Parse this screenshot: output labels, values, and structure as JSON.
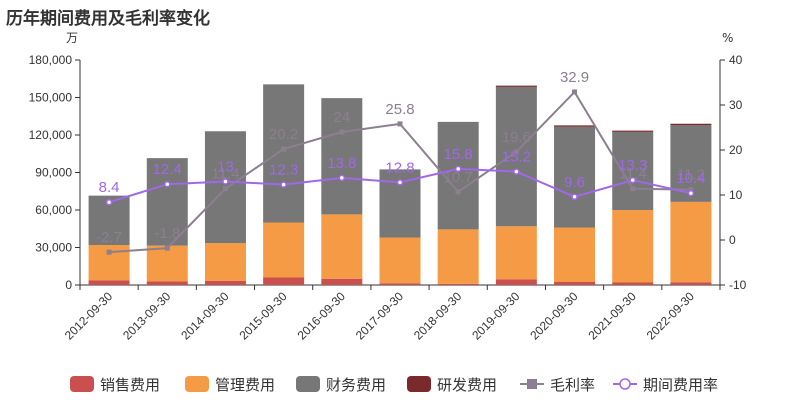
{
  "chart_data": {
    "type": "bar",
    "title": "历年期间费用及毛利率变化",
    "left_unit": "万",
    "right_unit": "%",
    "categories": [
      "2012-09-30",
      "2013-09-30",
      "2014-09-30",
      "2015-09-30",
      "2016-09-30",
      "2017-09-30",
      "2018-09-30",
      "2019-09-30",
      "2020-09-30",
      "2021-09-30",
      "2022-09-30"
    ],
    "left_axis": {
      "min": 0,
      "max": 180000,
      "ticks": [
        0,
        30000,
        60000,
        90000,
        120000,
        150000,
        180000
      ],
      "tick_labels": [
        "0",
        "30,000",
        "60,000",
        "90,000",
        "120,000",
        "150,000",
        "180,000"
      ]
    },
    "right_axis": {
      "min": -10,
      "max": 40,
      "ticks": [
        -10,
        0,
        10,
        20,
        30,
        40
      ],
      "tick_labels": [
        "-10",
        "0",
        "10",
        "20",
        "30",
        "40"
      ]
    },
    "stacked_series": [
      {
        "name": "销售费用",
        "color": "#c9504f",
        "values": [
          3800,
          3000,
          3400,
          6000,
          5000,
          1400,
          900,
          4600,
          2400,
          2000,
          2200
        ]
      },
      {
        "name": "管理费用",
        "color": "#f59a45",
        "values": [
          28200,
          28500,
          30100,
          44000,
          51500,
          36600,
          43600,
          42400,
          43600,
          58000,
          64300
        ]
      },
      {
        "name": "财务费用",
        "color": "#777777",
        "values": [
          39500,
          70000,
          89500,
          110500,
          93000,
          54500,
          86000,
          111500,
          80700,
          62500,
          61500
        ]
      },
      {
        "name": "研发费用",
        "color": "#7a2a2a",
        "values": [
          0,
          0,
          0,
          0,
          0,
          0,
          0,
          1000,
          1000,
          1000,
          1000
        ]
      }
    ],
    "line_series": [
      {
        "name": "毛利率",
        "color": "#8c7f8f",
        "values": [
          -2.7,
          -1.8,
          11.4,
          20.2,
          24,
          25.8,
          10.7,
          19.6,
          32.9,
          11.4,
          11.2
        ],
        "labels": [
          "-2.7",
          "-1.8",
          "11.4",
          "20.2",
          "24",
          "25.8",
          "10.7",
          "19.6",
          "32.9",
          "11.4",
          "11.2"
        ]
      },
      {
        "name": "期间费用率",
        "color": "#a068e8",
        "values": [
          8.4,
          12.4,
          13,
          12.3,
          13.8,
          12.8,
          15.8,
          15.2,
          9.6,
          13.3,
          10.4
        ],
        "labels": [
          "8.4",
          "12.4",
          "13",
          "12.3",
          "13.8",
          "12.8",
          "15.8",
          "15.2",
          "9.6",
          "13.3",
          "10.4"
        ]
      }
    ],
    "legend": [
      "销售费用",
      "管理费用",
      "财务费用",
      "研发费用",
      "毛利率",
      "期间费用率"
    ],
    "legend_position": "bottom",
    "grid": false
  }
}
